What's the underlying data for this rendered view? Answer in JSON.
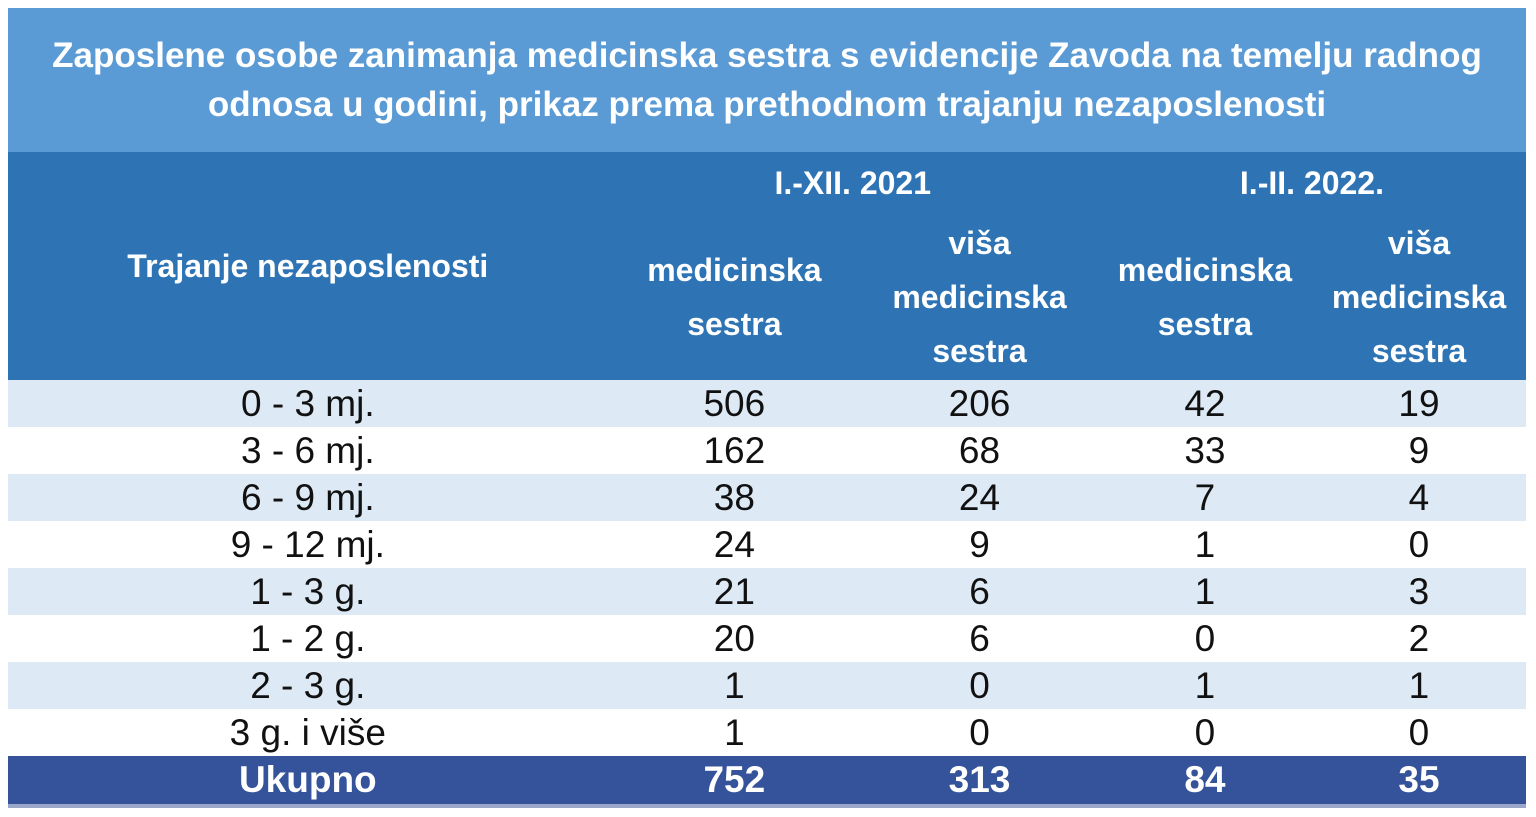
{
  "title": "Zaposlene osobe zanimanja medicinska sestra s evidencije Zavoda na temelju radnog odnosa u godini, prikaz prema prethodnom trajanju nezaposlenosti",
  "table": {
    "row_dimension_label": "Trajanje nezaposlenosti",
    "groups": [
      {
        "label": "I.-XII. 2021"
      },
      {
        "label": "I.-II. 2022."
      }
    ],
    "columns": [
      "medicinska sestra",
      "viša medicinska sestra",
      "medicinska sestra",
      "viša medicinska sestra"
    ],
    "rows": [
      {
        "label": "0 - 3 mj.",
        "values": [
          "506",
          "206",
          "42",
          "19"
        ]
      },
      {
        "label": "3 - 6 mj.",
        "values": [
          "162",
          "68",
          "33",
          "9"
        ]
      },
      {
        "label": "6 - 9 mj.",
        "values": [
          "38",
          "24",
          "7",
          "4"
        ]
      },
      {
        "label": "9 - 12 mj.",
        "values": [
          "24",
          "9",
          "1",
          "0"
        ]
      },
      {
        "label": "1 - 3 g.",
        "values": [
          "21",
          "6",
          "1",
          "3"
        ]
      },
      {
        "label": "1 - 2 g.",
        "values": [
          "20",
          "6",
          "0",
          "2"
        ]
      },
      {
        "label": "2 - 3 g.",
        "values": [
          "1",
          "0",
          "1",
          "1"
        ]
      },
      {
        "label": "3 g. i više",
        "values": [
          "1",
          "0",
          "0",
          "0"
        ]
      }
    ],
    "total": {
      "label": "Ukupno",
      "values": [
        "752",
        "313",
        "84",
        "35"
      ]
    }
  },
  "colors": {
    "title_bar": "#5B9BD5",
    "header": "#2E74B5",
    "row_alt": "#DDE9F5",
    "row": "#FFFFFF",
    "total_row": "#35539A",
    "total_bottom_border": "#9AA7C9",
    "header_text": "#FFFFFF",
    "data_text": "#111111"
  },
  "chart_data": {
    "type": "table",
    "title": "Zaposlene osobe zanimanja medicinska sestra s evidencije Zavoda na temelju radnog odnosa u godini, prikaz prema prethodnom trajanju nezaposlenosti",
    "categories": [
      "0 - 3 mj.",
      "3 - 6 mj.",
      "6 - 9 mj.",
      "9 - 12 mj.",
      "1 - 3 g.",
      "1 - 2 g.",
      "2 - 3 g.",
      "3 g. i više"
    ],
    "series": [
      {
        "name": "I.-XII. 2021 — medicinska sestra",
        "values": [
          506,
          162,
          38,
          24,
          21,
          20,
          1,
          1
        ],
        "total": 752
      },
      {
        "name": "I.-XII. 2021 — viša medicinska sestra",
        "values": [
          206,
          68,
          24,
          9,
          6,
          6,
          0,
          0
        ],
        "total": 313
      },
      {
        "name": "I.-II. 2022. — medicinska sestra",
        "values": [
          42,
          33,
          7,
          1,
          1,
          0,
          1,
          0
        ],
        "total": 84
      },
      {
        "name": "I.-II. 2022. — viša medicinska sestra",
        "values": [
          19,
          9,
          4,
          0,
          3,
          2,
          1,
          0
        ],
        "total": 35
      }
    ]
  }
}
